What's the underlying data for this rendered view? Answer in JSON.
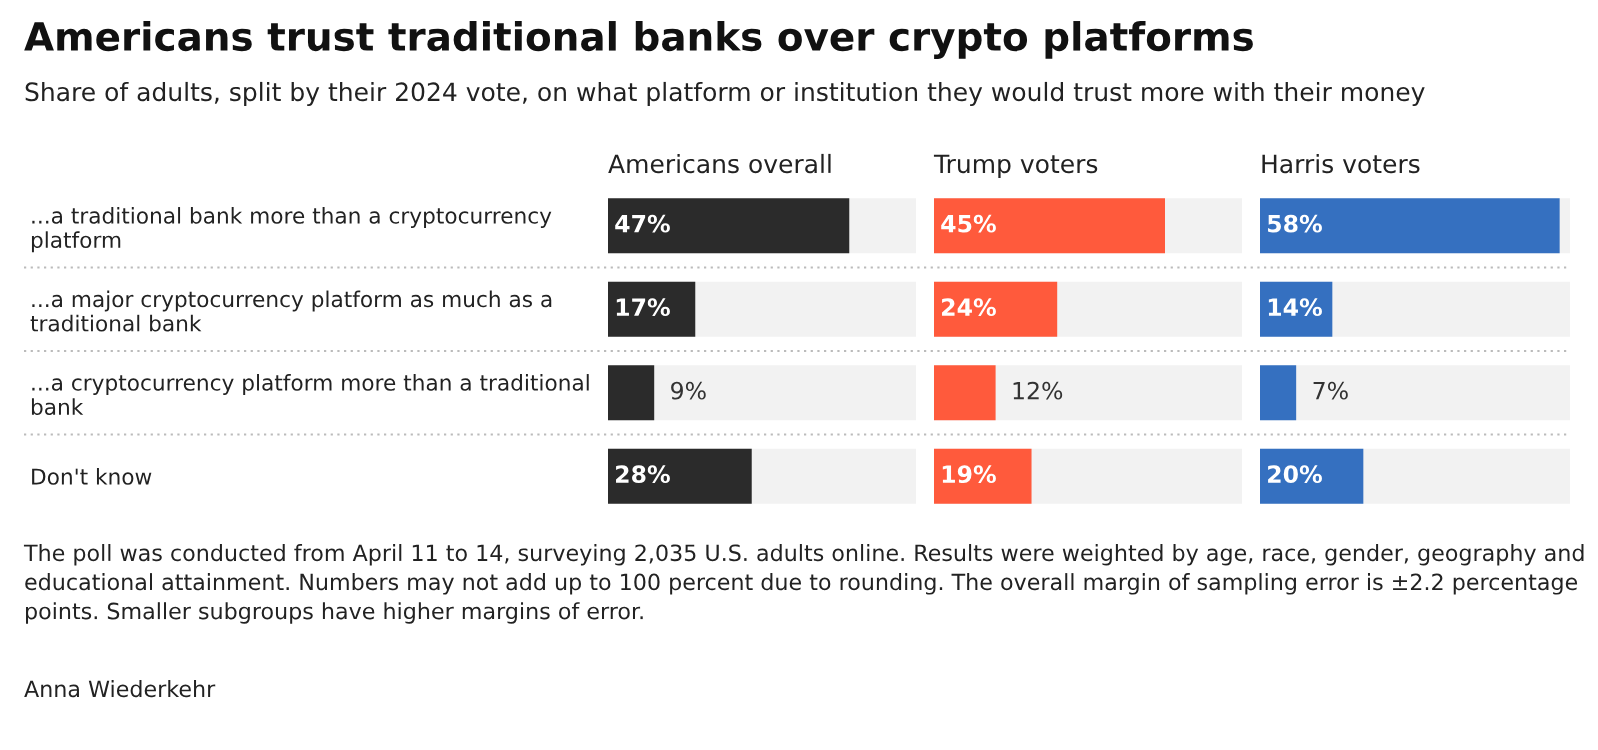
{
  "chart_data": [
    {
      "type": "bar",
      "orientation": "horizontal",
      "title": "Americans trust traditional banks over crypto platforms",
      "subtitle": "Share of adults, split by their 2024 vote, on what platform or institution they would trust more with their money",
      "xlabel": "Americans overall",
      "categories": [
        "...a traditional bank more than a cryptocurrency\nplatform",
        "...a major cryptocurrency platform as much as a\ntraditional bank",
        "...a cryptocurrency platform more than a traditional\nbank",
        "Don't know"
      ],
      "values": [
        47,
        17,
        9,
        28
      ],
      "color": "#2b2b2b",
      "xlim": [
        0,
        60
      ],
      "data_labels": true,
      "value_labels": [
        "47%",
        "17%",
        "9%",
        "28%"
      ],
      "tick_labels": "y",
      "annotations": [
        "The poll was conducted from April 11 to 14, surveying 2,035 U.S. adults online. Results were weighted by age, race, gender, geography and educational attainment. Numbers may not add up to 100 percent due to rounding. The overall margin of sampling error is ±2.2 percentage points. Smaller subgroups have higher margins of error.",
        "Anna Wiederkehr"
      ]
    },
    {
      "type": "bar",
      "orientation": "horizontal",
      "xlabel": "Trump voters",
      "categories": [
        null,
        null,
        null,
        null
      ],
      "values": [
        45,
        24,
        12,
        19
      ],
      "color": "#ff5a3c",
      "xlim": [
        0,
        60
      ],
      "data_labels": true,
      "value_labels": [
        "45%",
        "24%",
        "12%",
        "19%"
      ],
      "tick_labels": false
    },
    {
      "type": "bar",
      "orientation": "horizontal",
      "xlabel": "Harris voters",
      "categories": [
        null,
        null,
        null,
        null
      ],
      "values": [
        58,
        14,
        7,
        20
      ],
      "color": "#3570c0",
      "xlim": [
        0,
        60
      ],
      "data_labels": true,
      "value_labels": [
        "58%",
        "14%",
        "7%",
        "20%"
      ],
      "tick_labels": false
    }
  ]
}
